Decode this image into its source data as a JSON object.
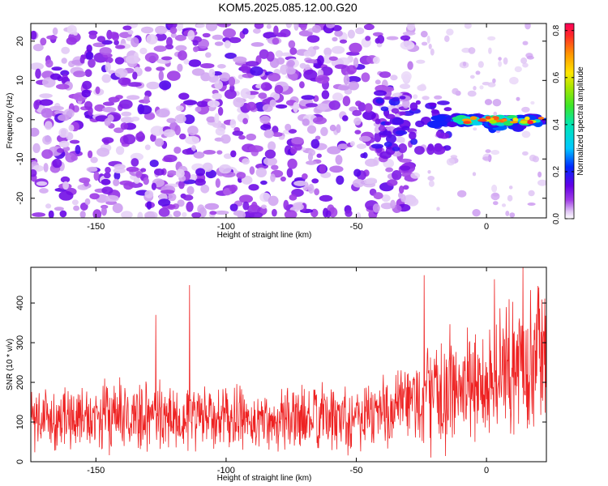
{
  "title": "KOM5.2025.085.12.00.G20",
  "colors": {
    "trace": "#ee2222",
    "axis": "#000000"
  },
  "chart_data": [
    {
      "type": "heatmap",
      "xlabel": "Height of straight line (km)",
      "ylabel": "Frequency (Hz)",
      "xlim": [
        -175,
        23
      ],
      "ylim": [
        -25,
        24.5
      ],
      "xticks": [
        -150,
        -100,
        -50,
        0
      ],
      "xtick_labels": [
        "-150",
        "-100",
        "-50",
        "0"
      ],
      "yticks": [
        20,
        10,
        0,
        -10,
        -20
      ],
      "ytick_labels": [
        "20",
        "10",
        "0",
        "-10",
        "-20"
      ],
      "colorbar": {
        "label": "Normalized spectral amplitude",
        "range": [
          0,
          0.83
        ],
        "ticks": [
          0.0,
          0.2,
          0.4,
          0.6,
          0.8
        ],
        "tick_labels": [
          "0.0",
          "0.2",
          "0.4",
          "0.6",
          "0.8"
        ],
        "colormap": "rainbow: white-purple-blue-cyan-green-yellow-orange-red"
      },
      "features": [
        {
          "x": [
            -175,
            -30
          ],
          "y": [
            -25,
            24
          ],
          "amplitude": 0.06,
          "note_desc": "scattered low-amplitude noise"
        },
        {
          "x": [
            -40,
            -15
          ],
          "y": [
            -8,
            6
          ],
          "amplitude": 0.15
        },
        {
          "x": [
            -15,
            22
          ],
          "y": [
            -2,
            1
          ],
          "amplitude": 0.8
        }
      ]
    },
    {
      "type": "line",
      "xlabel": "Height of straight line (km)",
      "ylabel": "SNR (10 * v/v)",
      "xlim": [
        -175,
        23
      ],
      "ylim": [
        0,
        490
      ],
      "xticks": [
        -150,
        -100,
        -50,
        0
      ],
      "xtick_labels": [
        "-150",
        "-100",
        "-50",
        "0"
      ],
      "yticks": [
        0,
        100,
        200,
        300,
        400
      ],
      "ytick_labels": [
        "0",
        "100",
        "200",
        "300",
        "400"
      ],
      "envelope": [
        {
          "x": -175,
          "mean": 110,
          "spread": 80
        },
        {
          "x": -120,
          "mean": 115,
          "spread": 90
        },
        {
          "x": -90,
          "mean": 105,
          "spread": 75
        },
        {
          "x": -60,
          "mean": 110,
          "spread": 85
        },
        {
          "x": -35,
          "mean": 130,
          "spread": 100
        },
        {
          "x": -25,
          "mean": 160,
          "spread": 130
        },
        {
          "x": 0,
          "mean": 200,
          "spread": 160
        },
        {
          "x": 22,
          "mean": 280,
          "spread": 170
        }
      ],
      "peaks": [
        {
          "x": -114,
          "y": 445
        },
        {
          "x": -127,
          "y": 370
        },
        {
          "x": -24,
          "y": 470
        },
        {
          "x": 14,
          "y": 490
        },
        {
          "x": 3,
          "y": 460
        }
      ]
    }
  ]
}
